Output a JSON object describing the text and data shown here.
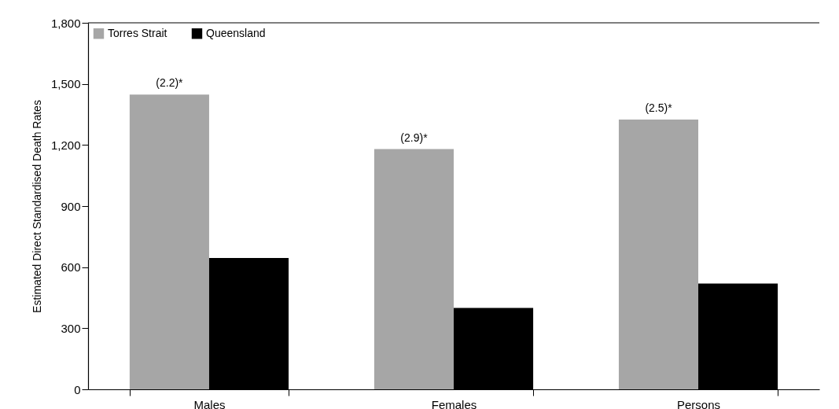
{
  "chart_data": {
    "type": "bar",
    "ylabel": "Estimated Direct Standardised Death Rates",
    "categories": [
      "Males",
      "Females",
      "Persons"
    ],
    "series": [
      {
        "name": "Torres Strait",
        "color": "#a6a6a6",
        "values": [
          1448,
          1180,
          1325
        ]
      },
      {
        "name": "Queensland",
        "color": "#000000",
        "values": [
          645,
          400,
          520
        ]
      }
    ],
    "annotations": [
      {
        "text": "(2.2)*",
        "x": "Males",
        "y": 1448
      },
      {
        "text": "(2.9)*",
        "x": "Females",
        "y": 1180
      },
      {
        "text": "(2.5)*",
        "x": "Persons",
        "y": 1325
      }
    ],
    "ylim": [
      0,
      1800
    ],
    "yticks": [
      0,
      300,
      600,
      900,
      {
        "value": 1200,
        "label": "1,200"
      },
      {
        "value": 1500,
        "label": "1,500"
      },
      {
        "value": 1800,
        "label": "1,800"
      }
    ],
    "grid": false,
    "legend": "top left"
  }
}
